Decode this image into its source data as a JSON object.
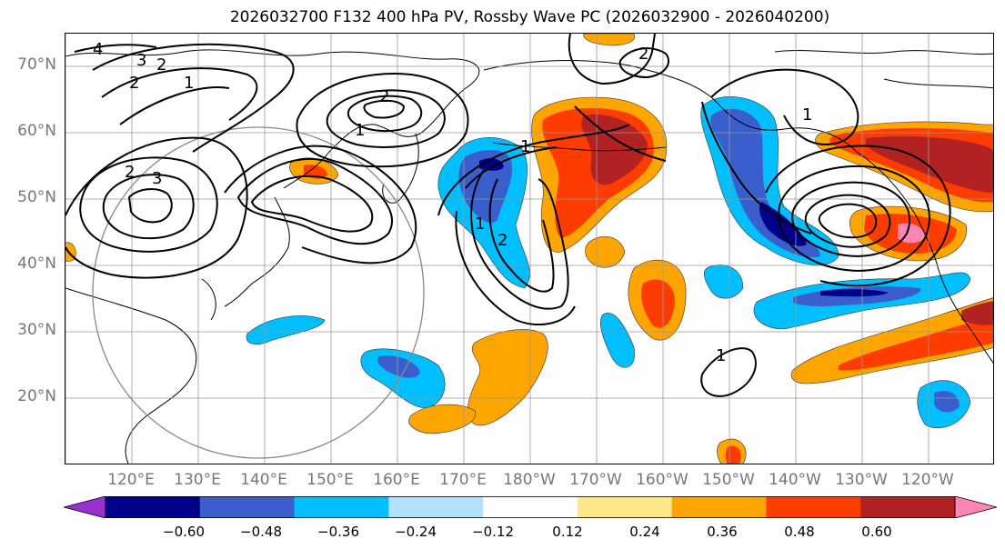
{
  "title": "2026032700 F132 400 hPa PV, Rossby Wave PC (2026032900 - 2026040200)",
  "lat_labels": [
    "70°N",
    "60°N",
    "50°N",
    "40°N",
    "30°N",
    "20°N"
  ],
  "lon_labels": [
    "120°E",
    "130°E",
    "140°E",
    "150°E",
    "160°E",
    "170°E",
    "180°W",
    "170°W",
    "160°W",
    "150°W",
    "140°W",
    "130°W",
    "120°W"
  ],
  "contour_labels": [
    "4",
    "3",
    "2",
    "2",
    "1",
    "2",
    "3",
    "2",
    "1",
    "1",
    "2",
    "2",
    "1",
    "1",
    "1"
  ],
  "colorbar": {
    "ticks": [
      "−0.60",
      "−0.48",
      "−0.36",
      "−0.24",
      "−0.12",
      "0.12",
      "0.24",
      "0.36",
      "0.48",
      "0.60"
    ],
    "colors": [
      "#9a30d0",
      "#00008b",
      "#3a5fcd",
      "#00bfff",
      "#b2e2ff",
      "#ffffff",
      "#ffe88a",
      "#ffa500",
      "#ff3c00",
      "#b22222",
      "#ff85b4"
    ]
  },
  "colors": {
    "neg_strong": "#00008b",
    "neg_mid": "#3a5fcd",
    "neg_light": "#00bfff",
    "pos_light": "#ffa500",
    "pos_mid": "#ff3c00",
    "pos_strong": "#b22222",
    "pos_extreme": "#ff85b4"
  }
}
